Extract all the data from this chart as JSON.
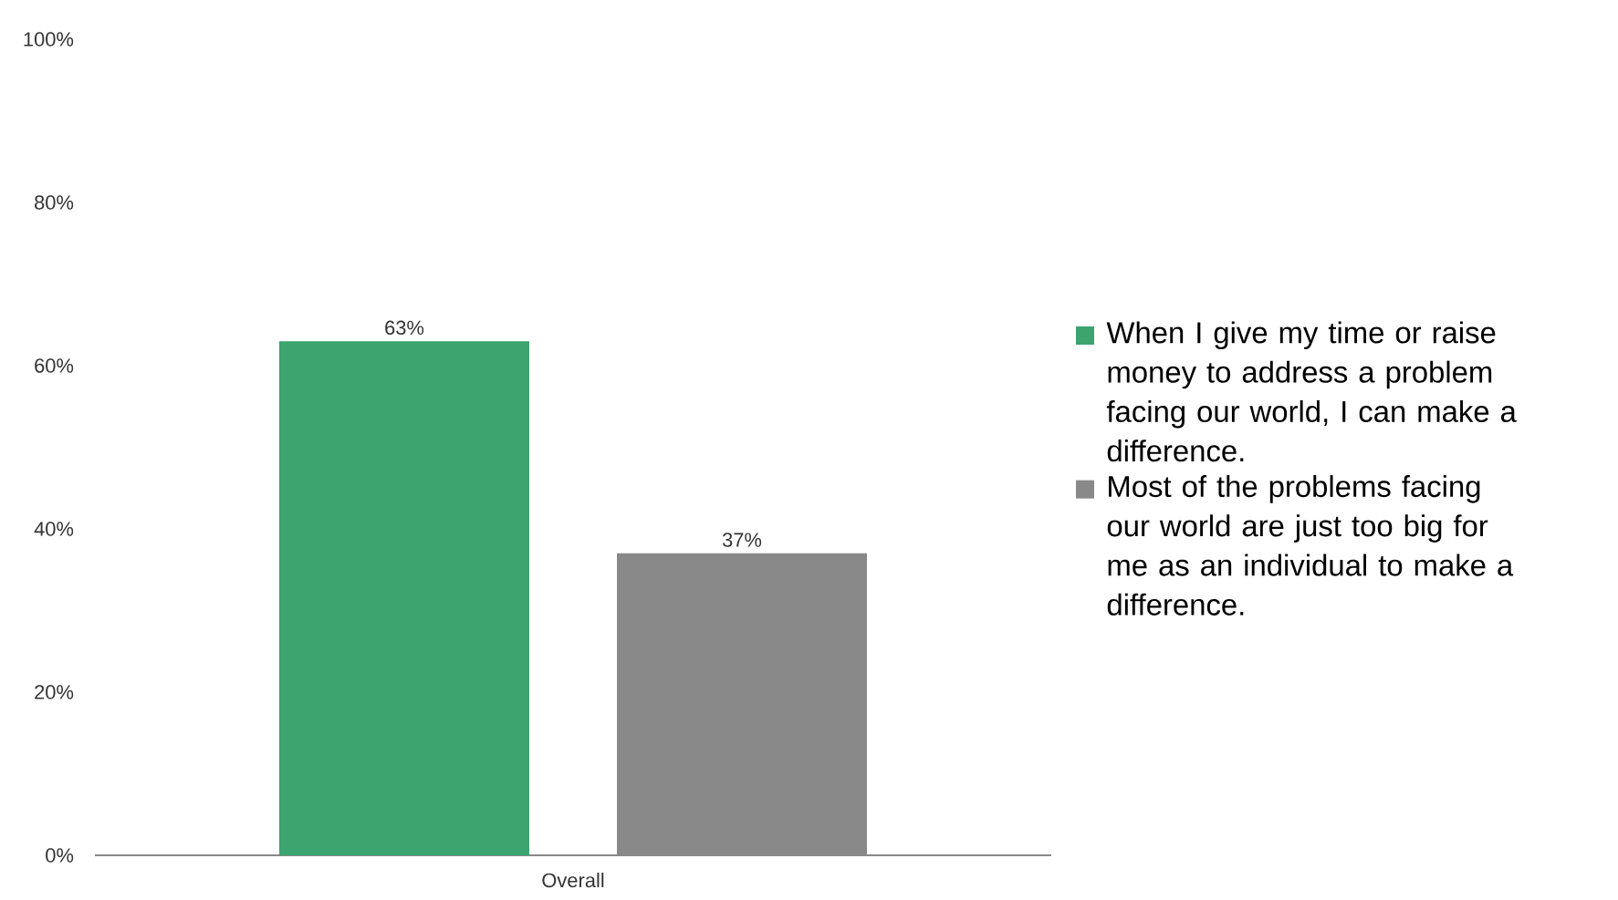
{
  "chart_data": {
    "type": "bar",
    "categories": [
      "Overall"
    ],
    "series": [
      {
        "name": "When I give my time or raise money to address a problem facing our world, I can make a difference.",
        "color": "#3ba46f",
        "values": [
          63
        ],
        "value_labels": [
          "63%"
        ]
      },
      {
        "name": "Most of the problems facing our world are just too big for me as an individual to make a difference.",
        "color": "#898989",
        "values": [
          37
        ],
        "value_labels": [
          "37%"
        ]
      }
    ],
    "ylim": [
      0,
      100
    ],
    "yticks": [
      {
        "value": 0,
        "label": "0%"
      },
      {
        "value": 20,
        "label": "20%"
      },
      {
        "value": 40,
        "label": "40%"
      },
      {
        "value": 60,
        "label": "60%"
      },
      {
        "value": 80,
        "label": "80%"
      },
      {
        "value": 100,
        "label": "100%"
      }
    ],
    "legend": "right"
  }
}
